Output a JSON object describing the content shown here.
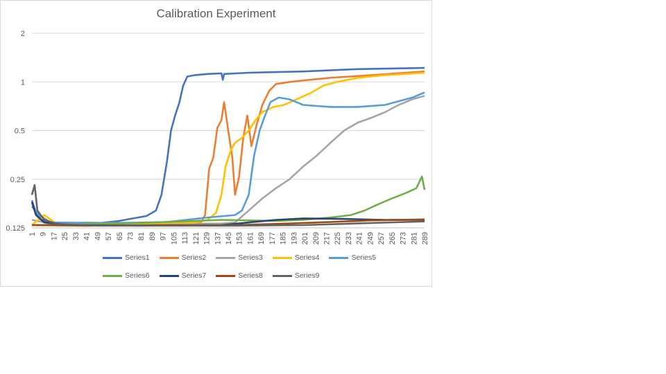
{
  "chart_data": {
    "type": "line",
    "title": "Calibration Experiment",
    "xlabel": "",
    "ylabel": "",
    "y_scale": "log2",
    "ylim": [
      0.125,
      2
    ],
    "y_ticks": [
      "0.125",
      "0.25",
      "0.5",
      "1",
      "2"
    ],
    "x_range": [
      1,
      289
    ],
    "x_tick_labels": [
      "1",
      "9",
      "17",
      "25",
      "33",
      "41",
      "49",
      "57",
      "65",
      "73",
      "81",
      "89",
      "97",
      "105",
      "113",
      "121",
      "129",
      "137",
      "145",
      "153",
      "161",
      "169",
      "177",
      "185",
      "193",
      "201",
      "209",
      "217",
      "225",
      "233",
      "241",
      "249",
      "257",
      "265",
      "273",
      "281",
      "289"
    ],
    "grid": "horizontal",
    "legend_position": "bottom",
    "series": [
      {
        "name": "Series1",
        "color": "#4472C4",
        "points": [
          [
            1,
            0.185
          ],
          [
            4,
            0.155
          ],
          [
            8,
            0.14
          ],
          [
            15,
            0.133
          ],
          [
            30,
            0.131
          ],
          [
            50,
            0.134
          ],
          [
            65,
            0.138
          ],
          [
            75,
            0.143
          ],
          [
            85,
            0.148
          ],
          [
            92,
            0.16
          ],
          [
            96,
            0.2
          ],
          [
            100,
            0.32
          ],
          [
            103,
            0.5
          ],
          [
            106,
            0.62
          ],
          [
            109,
            0.74
          ],
          [
            112,
            0.95
          ],
          [
            115,
            1.08
          ],
          [
            120,
            1.1
          ],
          [
            130,
            1.12
          ],
          [
            140,
            1.13
          ],
          [
            141,
            1.03
          ],
          [
            142,
            1.12
          ],
          [
            160,
            1.14
          ],
          [
            200,
            1.16
          ],
          [
            240,
            1.2
          ],
          [
            289,
            1.22
          ]
        ]
      },
      {
        "name": "Series2",
        "color": "#ED7D31",
        "points": [
          [
            1,
            0.13
          ],
          [
            20,
            0.13
          ],
          [
            60,
            0.131
          ],
          [
            100,
            0.133
          ],
          [
            125,
            0.135
          ],
          [
            128,
            0.15
          ],
          [
            131,
            0.29
          ],
          [
            134,
            0.34
          ],
          [
            137,
            0.52
          ],
          [
            140,
            0.58
          ],
          [
            142,
            0.75
          ],
          [
            145,
            0.5
          ],
          [
            148,
            0.34
          ],
          [
            150,
            0.2
          ],
          [
            153,
            0.26
          ],
          [
            156,
            0.45
          ],
          [
            159,
            0.62
          ],
          [
            162,
            0.4
          ],
          [
            166,
            0.55
          ],
          [
            170,
            0.72
          ],
          [
            175,
            0.88
          ],
          [
            180,
            0.97
          ],
          [
            190,
            1.0
          ],
          [
            200,
            1.02
          ],
          [
            220,
            1.06
          ],
          [
            250,
            1.1
          ],
          [
            289,
            1.16
          ]
        ]
      },
      {
        "name": "Series3",
        "color": "#A5A5A5",
        "points": [
          [
            1,
            0.14
          ],
          [
            20,
            0.13
          ],
          [
            80,
            0.132
          ],
          [
            140,
            0.133
          ],
          [
            150,
            0.135
          ],
          [
            160,
            0.16
          ],
          [
            170,
            0.19
          ],
          [
            180,
            0.22
          ],
          [
            190,
            0.25
          ],
          [
            200,
            0.3
          ],
          [
            210,
            0.35
          ],
          [
            220,
            0.42
          ],
          [
            230,
            0.5
          ],
          [
            240,
            0.56
          ],
          [
            250,
            0.6
          ],
          [
            260,
            0.65
          ],
          [
            270,
            0.72
          ],
          [
            280,
            0.78
          ],
          [
            289,
            0.82
          ]
        ]
      },
      {
        "name": "Series4",
        "color": "#FFC000",
        "points": [
          [
            1,
            0.13
          ],
          [
            10,
            0.15
          ],
          [
            20,
            0.131
          ],
          [
            40,
            0.135
          ],
          [
            80,
            0.133
          ],
          [
            120,
            0.135
          ],
          [
            130,
            0.14
          ],
          [
            136,
            0.155
          ],
          [
            140,
            0.2
          ],
          [
            143,
            0.3
          ],
          [
            147,
            0.38
          ],
          [
            150,
            0.42
          ],
          [
            155,
            0.45
          ],
          [
            160,
            0.5
          ],
          [
            165,
            0.58
          ],
          [
            170,
            0.65
          ],
          [
            178,
            0.7
          ],
          [
            186,
            0.72
          ],
          [
            195,
            0.78
          ],
          [
            205,
            0.85
          ],
          [
            215,
            0.95
          ],
          [
            225,
            1.0
          ],
          [
            240,
            1.06
          ],
          [
            260,
            1.1
          ],
          [
            289,
            1.14
          ]
        ]
      },
      {
        "name": "Series5",
        "color": "#5B9BD5",
        "points": [
          [
            1,
            0.17
          ],
          [
            6,
            0.15
          ],
          [
            15,
            0.135
          ],
          [
            60,
            0.134
          ],
          [
            100,
            0.136
          ],
          [
            130,
            0.145
          ],
          [
            150,
            0.15
          ],
          [
            155,
            0.16
          ],
          [
            160,
            0.2
          ],
          [
            164,
            0.35
          ],
          [
            168,
            0.5
          ],
          [
            172,
            0.62
          ],
          [
            176,
            0.75
          ],
          [
            182,
            0.8
          ],
          [
            190,
            0.78
          ],
          [
            200,
            0.72
          ],
          [
            220,
            0.7
          ],
          [
            240,
            0.7
          ],
          [
            260,
            0.72
          ],
          [
            280,
            0.8
          ],
          [
            289,
            0.86
          ]
        ]
      },
      {
        "name": "Series6",
        "color": "#70AD47",
        "points": [
          [
            1,
            0.13
          ],
          [
            30,
            0.131
          ],
          [
            80,
            0.134
          ],
          [
            140,
            0.14
          ],
          [
            180,
            0.138
          ],
          [
            200,
            0.14
          ],
          [
            220,
            0.145
          ],
          [
            235,
            0.15
          ],
          [
            245,
            0.16
          ],
          [
            255,
            0.175
          ],
          [
            265,
            0.19
          ],
          [
            275,
            0.205
          ],
          [
            283,
            0.22
          ],
          [
            287,
            0.26
          ],
          [
            289,
            0.215
          ]
        ]
      },
      {
        "name": "Series7",
        "color": "#264478",
        "points": [
          [
            1,
            0.18
          ],
          [
            4,
            0.15
          ],
          [
            10,
            0.135
          ],
          [
            30,
            0.13
          ],
          [
            80,
            0.129
          ],
          [
            140,
            0.13
          ],
          [
            160,
            0.135
          ],
          [
            180,
            0.14
          ],
          [
            200,
            0.143
          ],
          [
            230,
            0.142
          ],
          [
            260,
            0.14
          ],
          [
            289,
            0.14
          ]
        ]
      },
      {
        "name": "Series8",
        "color": "#9E480E",
        "points": [
          [
            1,
            0.13
          ],
          [
            40,
            0.129
          ],
          [
            100,
            0.13
          ],
          [
            150,
            0.13
          ],
          [
            190,
            0.133
          ],
          [
            220,
            0.136
          ],
          [
            250,
            0.139
          ],
          [
            289,
            0.141
          ]
        ]
      },
      {
        "name": "Series9",
        "color": "#636363",
        "points": [
          [
            1,
            0.2
          ],
          [
            3,
            0.23
          ],
          [
            5,
            0.16
          ],
          [
            10,
            0.14
          ],
          [
            20,
            0.132
          ],
          [
            50,
            0.129
          ],
          [
            100,
            0.129
          ],
          [
            150,
            0.129
          ],
          [
            200,
            0.13
          ],
          [
            250,
            0.134
          ],
          [
            289,
            0.137
          ]
        ]
      }
    ]
  }
}
